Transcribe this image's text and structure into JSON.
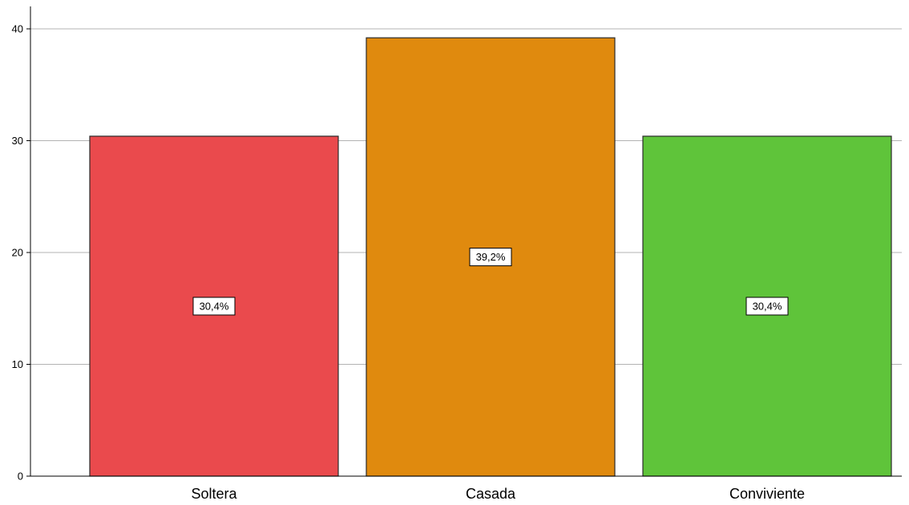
{
  "chart_data": {
    "type": "bar",
    "categories": [
      "Soltera",
      "Casada",
      "Conviviente"
    ],
    "values": [
      30.4,
      39.2,
      30.4
    ],
    "data_labels": [
      "30,4%",
      "39,2%",
      "30,4%"
    ],
    "colors": [
      "#ea4a4d",
      "#e08a0e",
      "#5fc43a"
    ],
    "yticks": [
      "0",
      "10",
      "20",
      "30",
      "40"
    ],
    "ylim": [
      0,
      42
    ],
    "grid": true,
    "title": "",
    "xlabel": "",
    "ylabel": ""
  }
}
